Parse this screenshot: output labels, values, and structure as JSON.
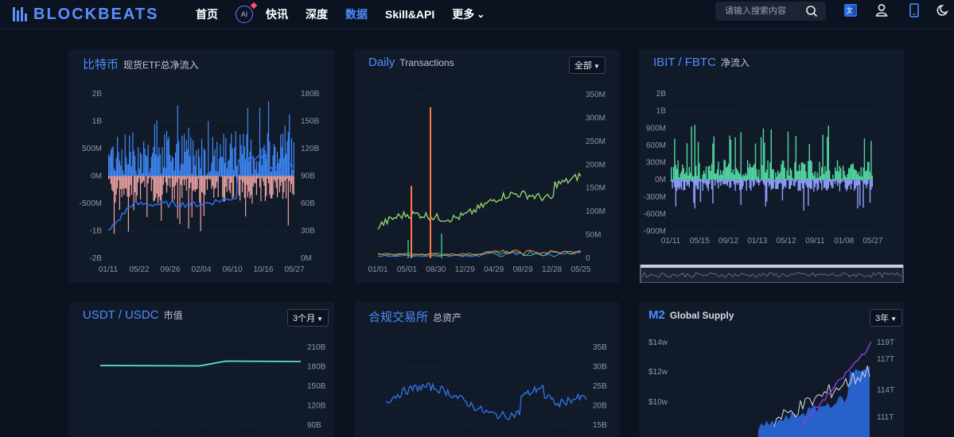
{
  "header": {
    "logo_text": "BLOCKBEATS",
    "nav": [
      {
        "label": "首页"
      },
      {
        "label": "快讯"
      },
      {
        "label": "深度"
      },
      {
        "label": "数据"
      },
      {
        "label": "Skill&API"
      },
      {
        "label": "更多"
      }
    ],
    "ai_icon_label": "AI",
    "more_caret": "⌄",
    "search_placeholder": "请输入搜索内容"
  },
  "cards": {
    "btc_etf": {
      "title": "比特币",
      "subtitle": "现货ETF总净流入"
    },
    "daily_tx": {
      "title": "Daily",
      "subtitle": "Transactions",
      "dropdown": "全部"
    },
    "ibit_fbtc": {
      "title": "IBIT / FBTC",
      "subtitle": "净流入"
    },
    "usdt_usdc": {
      "title": "USDT / USDC",
      "subtitle": "市值",
      "dropdown": "3个月"
    },
    "exchange": {
      "title": "合规交易所",
      "subtitle": "总资产"
    },
    "m2": {
      "title": "M2",
      "subtitle": "Global Supply",
      "dropdown": "3年"
    }
  },
  "chart_data": [
    {
      "type": "bar",
      "name_ref": "btc_etf",
      "y_left_ticks": [
        "2B",
        "1B",
        "500M",
        "0M",
        "-500M",
        "-1B",
        "-2B"
      ],
      "y_right_ticks": [
        "180B",
        "150B",
        "120B",
        "90B",
        "60B",
        "30B",
        "0M"
      ],
      "x_ticks": [
        "01/11",
        "05/22",
        "09/26",
        "02/04",
        "06/10",
        "10/16",
        "05/27"
      ],
      "colors": {
        "inflow": "#3f8cff",
        "outflow": "#f2a7a7",
        "line": "#2e6fe6"
      },
      "grid": true
    },
    {
      "type": "line",
      "name_ref": "daily_tx",
      "y_right_ticks": [
        "350M",
        "300M",
        "250M",
        "200M",
        "150M",
        "100M",
        "50M",
        "0"
      ],
      "x_ticks": [
        "01/01",
        "05/01",
        "08/30",
        "12/29",
        "04/29",
        "08/29",
        "12/28",
        "05/25"
      ],
      "colors": {
        "main": "#8fd16f",
        "spike": "#ff7a45",
        "green": "#2fc48a",
        "blue": "#4e8cff"
      },
      "grid": true
    },
    {
      "type": "bar",
      "name_ref": "ibit_fbtc",
      "y_left_ticks": [
        "2B",
        "1B",
        "900M",
        "600M",
        "300M",
        "0M",
        "-300M",
        "-600M",
        "-900M"
      ],
      "x_ticks": [
        "01/11",
        "05/15",
        "09/12",
        "01/13",
        "05/12",
        "09/11",
        "01/08",
        "05/27"
      ],
      "colors": {
        "ibit": "#52d6a0",
        "fbtc": "#8fa0ff"
      },
      "grid": true
    },
    {
      "type": "line",
      "name_ref": "usdt_usdc",
      "y_right_ticks": [
        "210B",
        "180B",
        "150B",
        "120B",
        "90B"
      ],
      "colors": {
        "line": "#5ee0c7"
      },
      "grid": true
    },
    {
      "type": "line",
      "name_ref": "exchange",
      "y_right_ticks": [
        "35B",
        "30B",
        "25B",
        "20B",
        "15B"
      ],
      "colors": {
        "line": "#2e6fe6"
      },
      "grid": true
    },
    {
      "type": "area",
      "name_ref": "m2",
      "y_left_ticks": [
        "$14w",
        "$12w",
        "$10w"
      ],
      "y_right_ticks": [
        "119T",
        "117T",
        "114T",
        "111T"
      ],
      "colors": {
        "m2": "#8a3ee8",
        "btc": "#2e6fe6",
        "white": "#d6dbe4"
      },
      "grid": true
    }
  ]
}
